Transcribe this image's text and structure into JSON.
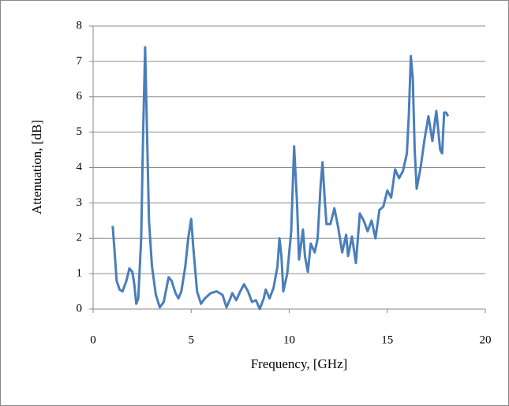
{
  "chart_data": {
    "type": "line",
    "xlabel": "Frequency, [GHz]",
    "ylabel": "Attenuation, [dB]",
    "xlim": [
      0,
      20
    ],
    "xticks": [
      0,
      5,
      10,
      15,
      20
    ],
    "ylim": [
      0,
      8
    ],
    "yticks": [
      0,
      1,
      2,
      3,
      4,
      5,
      6,
      7,
      8
    ],
    "grid": true,
    "x": [
      1.0,
      1.1,
      1.2,
      1.35,
      1.5,
      1.7,
      1.85,
      2.0,
      2.1,
      2.2,
      2.3,
      2.45,
      2.55,
      2.65,
      2.75,
      2.85,
      3.0,
      3.2,
      3.4,
      3.6,
      3.85,
      4.0,
      4.2,
      4.35,
      4.5,
      4.7,
      4.85,
      5.0,
      5.1,
      5.3,
      5.5,
      5.7,
      6.0,
      6.3,
      6.6,
      6.8,
      7.0,
      7.1,
      7.3,
      7.5,
      7.7,
      7.9,
      8.1,
      8.3,
      8.5,
      8.7,
      8.8,
      9.0,
      9.2,
      9.4,
      9.5,
      9.6,
      9.7,
      9.9,
      10.1,
      10.25,
      10.4,
      10.5,
      10.7,
      10.8,
      10.95,
      11.1,
      11.3,
      11.45,
      11.6,
      11.7,
      11.8,
      11.9,
      12.1,
      12.3,
      12.5,
      12.7,
      12.9,
      13.0,
      13.2,
      13.4,
      13.6,
      13.8,
      14.0,
      14.2,
      14.4,
      14.6,
      14.8,
      15.0,
      15.2,
      15.4,
      15.6,
      15.8,
      16.0,
      16.1,
      16.2,
      16.3,
      16.4,
      16.5,
      16.7,
      16.9,
      17.1,
      17.3,
      17.5,
      17.7,
      17.8,
      17.9,
      18.0,
      18.1
    ],
    "series": [
      {
        "color": "#4a7ebb",
        "values": [
          2.35,
          1.6,
          0.8,
          0.55,
          0.5,
          0.8,
          1.15,
          1.05,
          0.7,
          0.15,
          0.3,
          2.0,
          5.0,
          7.4,
          5.0,
          2.5,
          1.2,
          0.4,
          0.05,
          0.2,
          0.9,
          0.8,
          0.45,
          0.3,
          0.5,
          1.2,
          2.0,
          2.55,
          1.8,
          0.5,
          0.15,
          0.3,
          0.45,
          0.5,
          0.4,
          0.05,
          0.3,
          0.45,
          0.25,
          0.5,
          0.7,
          0.5,
          0.2,
          0.25,
          0.0,
          0.3,
          0.55,
          0.3,
          0.6,
          1.2,
          2.0,
          1.5,
          0.5,
          1.0,
          2.2,
          4.6,
          3.0,
          1.4,
          2.25,
          1.5,
          1.05,
          1.85,
          1.6,
          2.0,
          3.5,
          4.15,
          3.2,
          2.4,
          2.4,
          2.85,
          2.3,
          1.6,
          2.1,
          1.5,
          2.05,
          1.3,
          2.7,
          2.5,
          2.2,
          2.5,
          2.0,
          2.8,
          2.9,
          3.35,
          3.15,
          3.95,
          3.7,
          3.9,
          4.4,
          5.5,
          7.15,
          6.5,
          4.5,
          3.4,
          4.0,
          4.8,
          5.45,
          4.75,
          5.6,
          4.5,
          4.4,
          5.55,
          5.55,
          5.45
        ]
      }
    ]
  }
}
